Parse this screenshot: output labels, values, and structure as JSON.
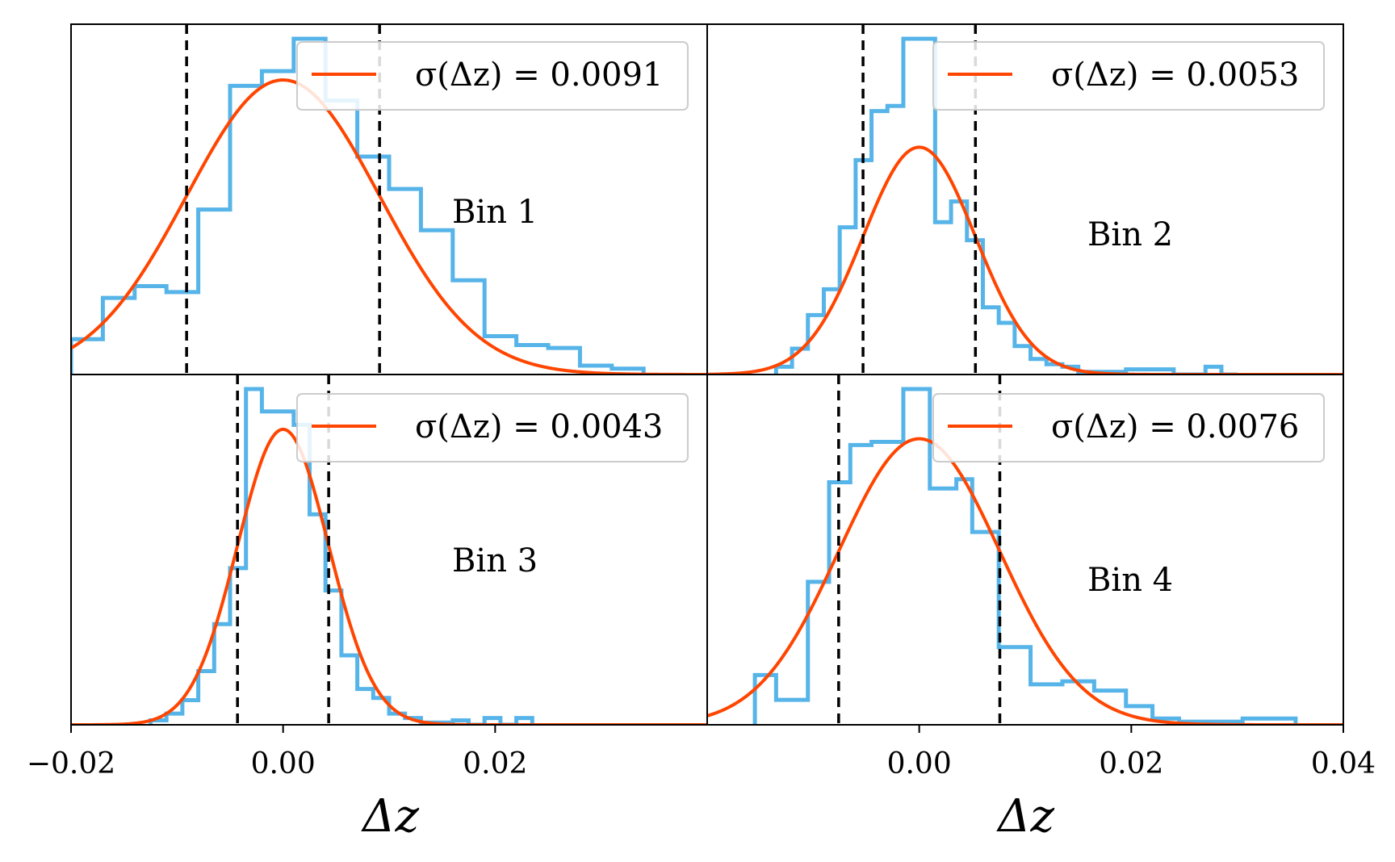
{
  "colors": {
    "histogram": "#56B4E9",
    "fit": "#FF4500",
    "marker": "#000000",
    "frame": "#000000",
    "legend_border": "#cccccc"
  },
  "chart_data": [
    {
      "type": "histogram",
      "panel": "top-left",
      "label": "Bin 1",
      "legend": "σ(Δz) = 0.0091",
      "sigma": 0.0091,
      "xlim": [
        -0.02,
        0.04
      ],
      "ylim": [
        0,
        1.14
      ],
      "bin_edges": [
        -0.02,
        -0.017,
        -0.014,
        -0.011,
        -0.008,
        -0.005,
        -0.002,
        0.001,
        0.004,
        0.007,
        0.01,
        0.013,
        0.016,
        0.019,
        0.022,
        0.025,
        0.028,
        0.031,
        0.034
      ],
      "counts": [
        0.12,
        0.26,
        0.3,
        0.28,
        0.56,
        0.98,
        1.03,
        1.14,
        0.93,
        0.74,
        0.63,
        0.49,
        0.32,
        0.13,
        0.1,
        0.09,
        0.03,
        0.02
      ],
      "dashed_lines": [
        -0.0091,
        0.0091
      ]
    },
    {
      "type": "histogram",
      "panel": "top-right",
      "label": "Bin 2",
      "legend": "σ(Δz) = 0.0053",
      "sigma": 0.0053,
      "xlim": [
        -0.02,
        0.04
      ],
      "ylim": [
        0,
        1.3
      ],
      "bin_edges": [
        -0.0135,
        -0.012,
        -0.0105,
        -0.009,
        -0.0075,
        -0.006,
        -0.0045,
        -0.003,
        -0.0015,
        0.0,
        0.0015,
        0.003,
        0.0045,
        0.006,
        0.0075,
        0.009,
        0.0105,
        0.012,
        0.0135,
        0.015,
        0.0165,
        0.018,
        0.0195,
        0.021,
        0.0225,
        0.024,
        0.0255,
        0.027,
        0.0285,
        0.03
      ],
      "counts": [
        0.03,
        0.1,
        0.23,
        0.33,
        0.57,
        0.83,
        1.02,
        1.04,
        1.3,
        1.3,
        0.59,
        0.67,
        0.52,
        0.26,
        0.2,
        0.11,
        0.06,
        0.04,
        0.03,
        0.01,
        0.01,
        0.01,
        0.02,
        0.02,
        0.02,
        0.0,
        0.0,
        0.03,
        0.0
      ],
      "dashed_lines": [
        -0.0053,
        0.0053
      ]
    },
    {
      "type": "histogram",
      "panel": "bottom-left",
      "label": "Bin 3",
      "legend": "σ(Δz) = 0.0043",
      "sigma": 0.0043,
      "xlim": [
        -0.02,
        0.04
      ],
      "ylim": [
        0,
        1.5
      ],
      "bin_edges": [
        -0.0125,
        -0.011,
        -0.0095,
        -0.008,
        -0.0065,
        -0.005,
        -0.0035,
        -0.002,
        -0.0005,
        0.001,
        0.0025,
        0.004,
        0.0055,
        0.007,
        0.0085,
        0.01,
        0.0115,
        0.013,
        0.0145,
        0.016,
        0.0175,
        0.019,
        0.0205,
        0.022,
        0.0235
      ],
      "counts": [
        0.02,
        0.05,
        0.11,
        0.24,
        0.45,
        0.7,
        1.5,
        1.4,
        1.4,
        1.34,
        0.94,
        0.6,
        0.31,
        0.16,
        0.12,
        0.05,
        0.03,
        0.01,
        0.01,
        0.02,
        0.0,
        0.03,
        0.0,
        0.03
      ],
      "dashed_lines": [
        -0.0043,
        0.0043
      ]
    },
    {
      "type": "histogram",
      "panel": "bottom-right",
      "label": "Bin 4",
      "legend": "σ(Δz) = 0.0076",
      "sigma": 0.0076,
      "xlim": [
        -0.02,
        0.04
      ],
      "ylim": [
        0,
        1.08
      ],
      "bin_edges": [
        -0.0155,
        -0.0135,
        -0.0105,
        -0.0085,
        -0.0065,
        -0.0045,
        -0.0015,
        0.001,
        0.0035,
        0.005,
        0.0075,
        0.0105,
        0.0135,
        0.0165,
        0.0195,
        0.022,
        0.0245,
        0.0275,
        0.0305,
        0.0355
      ],
      "counts": [
        0.16,
        0.08,
        0.46,
        0.78,
        0.9,
        0.91,
        1.08,
        0.76,
        0.79,
        0.62,
        0.25,
        0.13,
        0.14,
        0.11,
        0.06,
        0.02,
        0.01,
        0.01,
        0.02
      ],
      "dashed_lines": [
        -0.0076,
        0.0076
      ]
    }
  ],
  "axes": {
    "x_ticks_left": [
      "−0.02",
      "0.00",
      "0.02"
    ],
    "x_ticks_left_values": [
      -0.02,
      0.0,
      0.02
    ],
    "x_ticks_right": [
      "0.00",
      "0.02",
      "0.04"
    ],
    "x_ticks_right_values": [
      0.0,
      0.02,
      0.04
    ],
    "xlabel_left": "Δz",
    "xlabel_right": "Δz"
  }
}
